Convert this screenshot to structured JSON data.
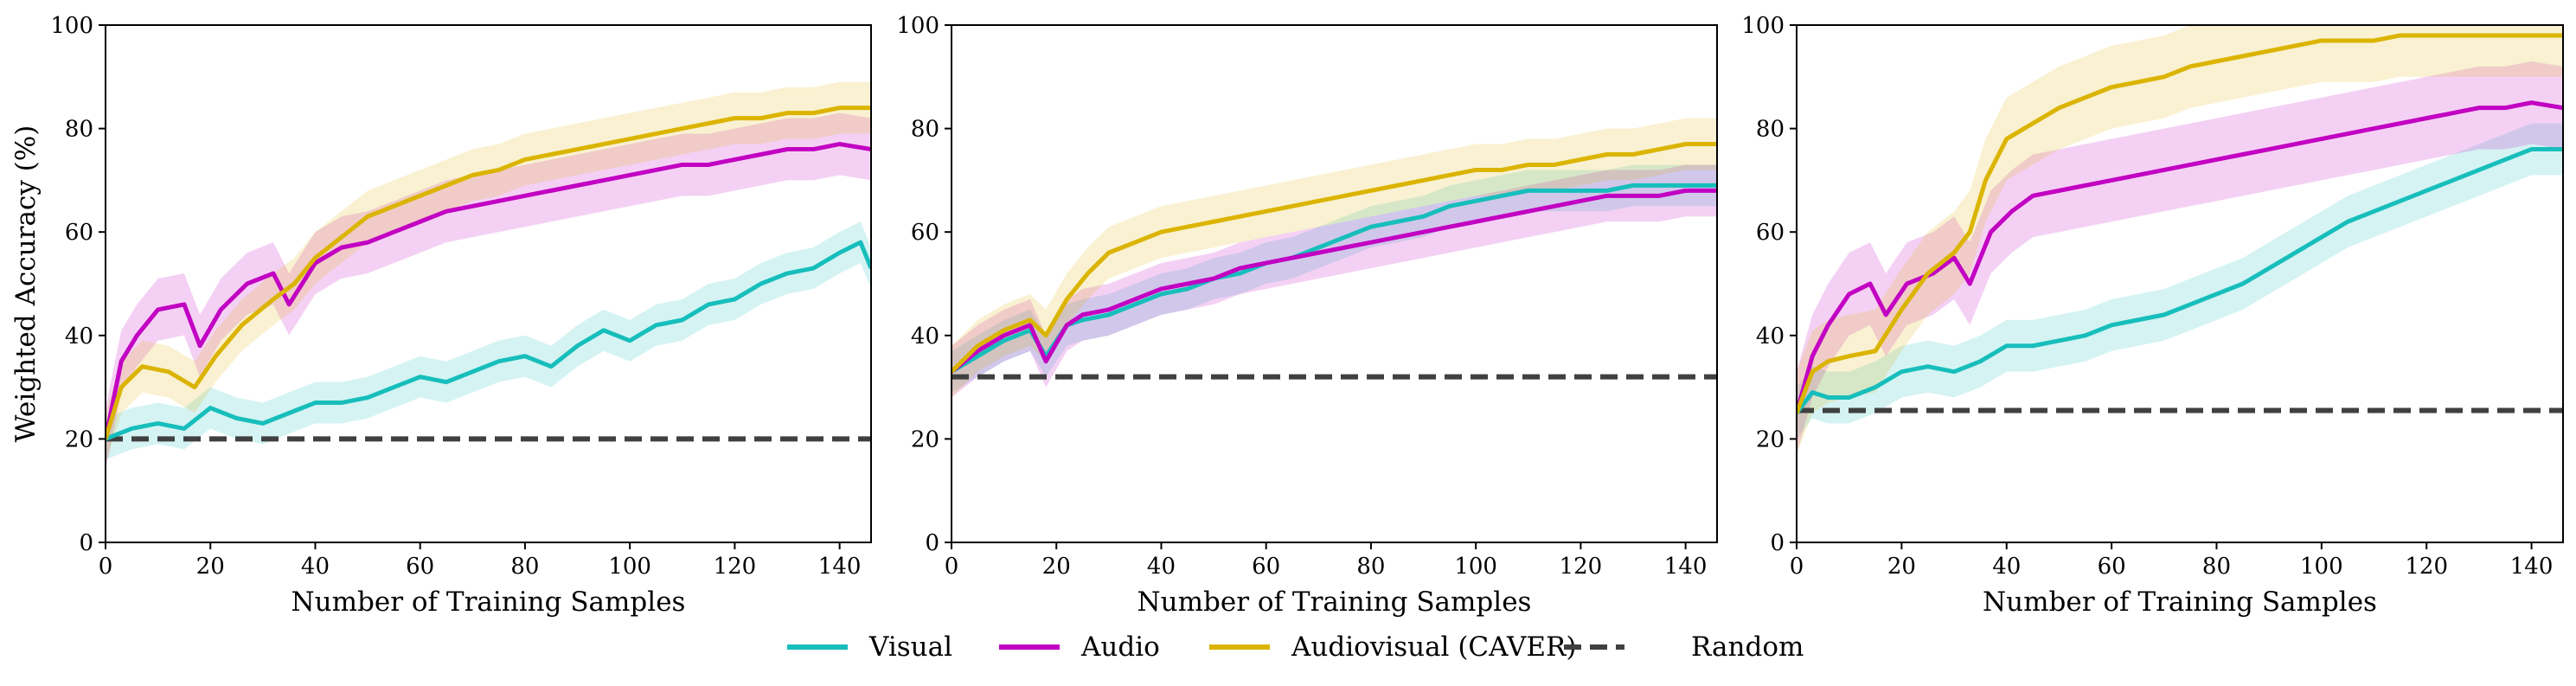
{
  "figure": {
    "legend": [
      {
        "name": "Visual",
        "color": "#17bebb",
        "style": "solid"
      },
      {
        "name": "Audio",
        "color": "#c200c2",
        "style": "solid"
      },
      {
        "name": "Audiovisual (CAVER)",
        "color": "#dbb400",
        "style": "solid"
      },
      {
        "name": "Random",
        "color": "#404040",
        "style": "dashed"
      }
    ]
  },
  "chart_data": [
    {
      "type": "line",
      "title": "",
      "xlabel": "Number of Training Samples",
      "ylabel": "Weighted Accuracy (%)",
      "xlim": [
        0,
        146
      ],
      "ylim": [
        0,
        100
      ],
      "xticks": [
        "0",
        "20",
        "40",
        "60",
        "80",
        "100",
        "120",
        "140"
      ],
      "yticks": [
        "0",
        "20",
        "40",
        "60",
        "80",
        "100"
      ],
      "random_baseline": 20,
      "series": [
        {
          "name": "Visual",
          "color": "#17bebb",
          "band": 4,
          "x": [
            0,
            5,
            10,
            15,
            20,
            25,
            30,
            35,
            40,
            45,
            50,
            55,
            60,
            65,
            70,
            75,
            80,
            85,
            90,
            95,
            100,
            105,
            110,
            115,
            120,
            125,
            130,
            135,
            140,
            144,
            146
          ],
          "y": [
            20,
            22,
            23,
            22,
            26,
            24,
            23,
            25,
            27,
            27,
            28,
            30,
            32,
            31,
            33,
            35,
            36,
            34,
            38,
            41,
            39,
            42,
            43,
            46,
            47,
            50,
            52,
            53,
            56,
            58,
            53
          ]
        },
        {
          "name": "Audio",
          "color": "#c200c2",
          "band": 6,
          "x": [
            0,
            3,
            6,
            10,
            15,
            18,
            22,
            27,
            32,
            35,
            40,
            45,
            50,
            55,
            60,
            65,
            70,
            75,
            80,
            85,
            90,
            95,
            100,
            105,
            110,
            115,
            120,
            125,
            130,
            135,
            140,
            146
          ],
          "y": [
            20,
            35,
            40,
            45,
            46,
            38,
            45,
            50,
            52,
            46,
            54,
            57,
            58,
            60,
            62,
            64,
            65,
            66,
            67,
            68,
            69,
            70,
            71,
            72,
            73,
            73,
            74,
            75,
            76,
            76,
            77,
            76
          ]
        },
        {
          "name": "Audiovisual (CAVER)",
          "color": "#dbb400",
          "band": 5,
          "x": [
            0,
            3,
            7,
            12,
            17,
            21,
            26,
            32,
            36,
            40,
            45,
            50,
            55,
            60,
            65,
            70,
            75,
            80,
            85,
            90,
            95,
            100,
            105,
            110,
            115,
            120,
            125,
            130,
            135,
            140,
            146
          ],
          "y": [
            20,
            30,
            34,
            33,
            30,
            36,
            42,
            47,
            50,
            55,
            59,
            63,
            65,
            67,
            69,
            71,
            72,
            74,
            75,
            76,
            77,
            78,
            79,
            80,
            81,
            82,
            82,
            83,
            83,
            84,
            84
          ]
        }
      ]
    },
    {
      "type": "line",
      "title": "",
      "xlabel": "Number of Training Samples",
      "ylabel": "",
      "xlim": [
        0,
        146
      ],
      "ylim": [
        0,
        100
      ],
      "xticks": [
        "0",
        "20",
        "40",
        "60",
        "80",
        "100",
        "120",
        "140"
      ],
      "yticks": [
        "0",
        "20",
        "40",
        "60",
        "80",
        "100"
      ],
      "random_baseline": 32,
      "series": [
        {
          "name": "Visual",
          "color": "#17bebb",
          "band": 4,
          "x": [
            0,
            5,
            10,
            15,
            18,
            22,
            25,
            30,
            35,
            40,
            45,
            50,
            55,
            60,
            65,
            70,
            75,
            80,
            85,
            90,
            95,
            100,
            105,
            110,
            115,
            120,
            125,
            130,
            135,
            140,
            146
          ],
          "y": [
            33,
            36,
            39,
            41,
            36,
            42,
            43,
            44,
            46,
            48,
            49,
            51,
            52,
            54,
            55,
            57,
            59,
            61,
            62,
            63,
            65,
            66,
            67,
            68,
            68,
            68,
            68,
            69,
            69,
            69,
            69
          ]
        },
        {
          "name": "Audio",
          "color": "#c200c2",
          "band": 5,
          "x": [
            0,
            5,
            10,
            15,
            18,
            22,
            25,
            30,
            35,
            40,
            45,
            50,
            55,
            60,
            65,
            70,
            75,
            80,
            85,
            90,
            95,
            100,
            105,
            110,
            115,
            120,
            125,
            130,
            135,
            140,
            146
          ],
          "y": [
            33,
            37,
            40,
            42,
            35,
            42,
            44,
            45,
            47,
            49,
            50,
            51,
            53,
            54,
            55,
            56,
            57,
            58,
            59,
            60,
            61,
            62,
            63,
            64,
            65,
            66,
            67,
            67,
            67,
            68,
            68
          ]
        },
        {
          "name": "Audiovisual (CAVER)",
          "color": "#dbb400",
          "band": 5,
          "x": [
            0,
            5,
            10,
            15,
            18,
            22,
            26,
            30,
            35,
            40,
            45,
            50,
            55,
            60,
            65,
            70,
            75,
            80,
            85,
            90,
            95,
            100,
            105,
            110,
            115,
            120,
            125,
            130,
            135,
            140,
            146
          ],
          "y": [
            33,
            38,
            41,
            43,
            40,
            47,
            52,
            56,
            58,
            60,
            61,
            62,
            63,
            64,
            65,
            66,
            67,
            68,
            69,
            70,
            71,
            72,
            72,
            73,
            73,
            74,
            75,
            75,
            76,
            77,
            77
          ]
        }
      ]
    },
    {
      "type": "line",
      "title": "",
      "xlabel": "Number of Training Samples",
      "ylabel": "",
      "xlim": [
        0,
        146
      ],
      "ylim": [
        0,
        100
      ],
      "xticks": [
        "0",
        "20",
        "40",
        "60",
        "80",
        "100",
        "120",
        "140"
      ],
      "yticks": [
        "0",
        "20",
        "40",
        "60",
        "80",
        "100"
      ],
      "random_baseline": 25.5,
      "series": [
        {
          "name": "Visual",
          "color": "#17bebb",
          "band": 5,
          "x": [
            0,
            3,
            6,
            10,
            15,
            20,
            25,
            30,
            35,
            40,
            45,
            50,
            55,
            60,
            65,
            70,
            75,
            80,
            85,
            90,
            95,
            100,
            105,
            110,
            115,
            120,
            125,
            130,
            135,
            140,
            146
          ],
          "y": [
            25,
            29,
            28,
            28,
            30,
            33,
            34,
            33,
            35,
            38,
            38,
            39,
            40,
            42,
            43,
            44,
            46,
            48,
            50,
            53,
            56,
            59,
            62,
            64,
            66,
            68,
            70,
            72,
            74,
            76,
            76
          ]
        },
        {
          "name": "Audio",
          "color": "#c200c2",
          "band": 8,
          "x": [
            0,
            3,
            6,
            10,
            14,
            17,
            21,
            26,
            30,
            33,
            37,
            41,
            45,
            50,
            55,
            60,
            65,
            70,
            75,
            80,
            85,
            90,
            95,
            100,
            105,
            110,
            115,
            120,
            125,
            130,
            135,
            140,
            146
          ],
          "y": [
            25,
            36,
            42,
            48,
            50,
            44,
            50,
            52,
            55,
            50,
            60,
            64,
            67,
            68,
            69,
            70,
            71,
            72,
            73,
            74,
            75,
            76,
            77,
            78,
            79,
            80,
            81,
            82,
            83,
            84,
            84,
            85,
            84
          ]
        },
        {
          "name": "Audiovisual (CAVER)",
          "color": "#dbb400",
          "band": 8,
          "x": [
            0,
            3,
            6,
            10,
            15,
            20,
            25,
            30,
            33,
            36,
            40,
            45,
            50,
            55,
            60,
            65,
            70,
            75,
            80,
            85,
            90,
            95,
            100,
            105,
            110,
            115,
            120,
            125,
            130,
            135,
            140,
            146
          ],
          "y": [
            25,
            33,
            35,
            36,
            37,
            45,
            52,
            56,
            60,
            70,
            78,
            81,
            84,
            86,
            88,
            89,
            90,
            92,
            93,
            94,
            95,
            96,
            97,
            97,
            97,
            98,
            98,
            98,
            98,
            98,
            98,
            98
          ]
        }
      ]
    }
  ]
}
